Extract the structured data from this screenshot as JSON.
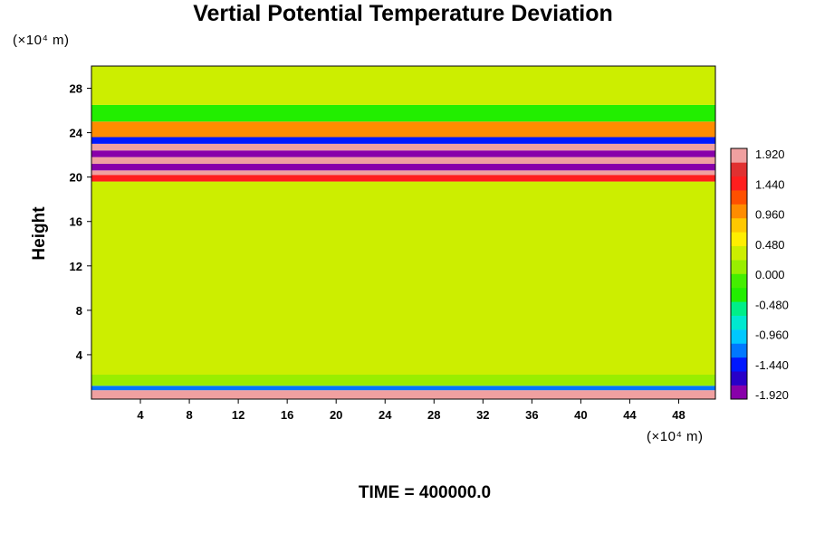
{
  "chart_data": {
    "type": "heatmap",
    "title": "Vertial Potential Temperature Deviation",
    "xlabel": "",
    "ylabel": "Height",
    "x_unit": "(×10⁴ m)",
    "y_unit": "(×10⁴ m)",
    "xlim": [
      0,
      51
    ],
    "ylim": [
      0,
      30
    ],
    "x_ticks": [
      4,
      8,
      12,
      16,
      20,
      24,
      28,
      32,
      36,
      40,
      44,
      48
    ],
    "y_ticks": [
      4,
      8,
      12,
      16,
      20,
      24,
      28
    ],
    "colorbar": {
      "labels": [
        "1.920",
        "1.440",
        "0.960",
        "0.480",
        "0.000",
        "-0.480",
        "-0.960",
        "-1.440",
        "-1.920"
      ],
      "min": -1.92,
      "max": 1.92,
      "colors": [
        "#8800aa",
        "#2800c8",
        "#0018ff",
        "#0078ff",
        "#00c8ff",
        "#00e8d0",
        "#00ee88",
        "#22ee00",
        "#44ee00",
        "#99ee00",
        "#ccee00",
        "#ffee00",
        "#ffc800",
        "#ff8c00",
        "#ff5000",
        "#ff1e1e",
        "#e03030",
        "#f0a0a0"
      ]
    },
    "bands": [
      {
        "y": [
          0,
          0.8
        ],
        "value": 1.9
      },
      {
        "y": [
          0.8,
          1.2
        ],
        "value": -1.2
      },
      {
        "y": [
          1.2,
          2.2
        ],
        "value": 0.1
      },
      {
        "y": [
          2.2,
          19.6
        ],
        "value": 0.3
      },
      {
        "y": [
          19.6,
          20.2
        ],
        "value": 1.3
      },
      {
        "y": [
          20.2,
          20.6
        ],
        "value": 1.9
      },
      {
        "y": [
          20.6,
          21.2
        ],
        "value": -1.9
      },
      {
        "y": [
          21.2,
          21.8
        ],
        "value": 1.9
      },
      {
        "y": [
          21.8,
          22.4
        ],
        "value": -1.9
      },
      {
        "y": [
          22.4,
          23.0
        ],
        "value": 1.9
      },
      {
        "y": [
          23.0,
          23.6
        ],
        "value": -1.3
      },
      {
        "y": [
          23.6,
          25.0
        ],
        "value": 0.9
      },
      {
        "y": [
          25.0,
          26.5
        ],
        "value": -0.4
      },
      {
        "y": [
          26.5,
          30
        ],
        "value": 0.3
      }
    ]
  },
  "footer": {
    "time_label": "TIME = 400000.0"
  }
}
